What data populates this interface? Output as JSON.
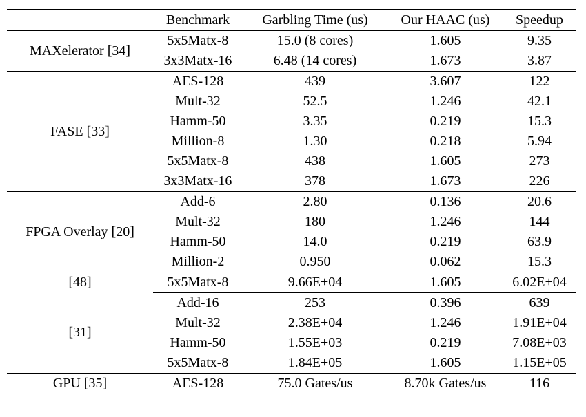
{
  "table": {
    "header": [
      "Benchmark",
      "Garbling Time (us)",
      "Our HAAC (us)",
      "Speedup"
    ],
    "sections": [
      {
        "groups": [
          {
            "label": "MAXelerator [34]",
            "rows": [
              [
                "5x5Matx-8",
                "15.0 (8 cores)",
                "1.605",
                "9.35"
              ],
              [
                "3x3Matx-16",
                "6.48 (14 cores)",
                "1.673",
                "3.87"
              ]
            ]
          }
        ]
      },
      {
        "groups": [
          {
            "label": "FASE [33]",
            "rows": [
              [
                "AES-128",
                "439",
                "3.607",
                "122"
              ],
              [
                "Mult-32",
                "52.5",
                "1.246",
                "42.1"
              ],
              [
                "Hamm-50",
                "3.35",
                "0.219",
                "15.3"
              ],
              [
                "Million-8",
                "1.30",
                "0.218",
                "5.94"
              ],
              [
                "5x5Matx-8",
                "438",
                "1.605",
                "273"
              ],
              [
                "3x3Matx-16",
                "378",
                "1.673",
                "226"
              ]
            ]
          }
        ]
      },
      {
        "groups": [
          {
            "label": "FPGA Overlay [20]",
            "rows": [
              [
                "Add-6",
                "2.80",
                "0.136",
                "20.6"
              ],
              [
                "Mult-32",
                "180",
                "1.246",
                "144"
              ],
              [
                "Hamm-50",
                "14.0",
                "0.219",
                "63.9"
              ],
              [
                "Million-2",
                "0.950",
                "0.062",
                "15.3"
              ]
            ]
          },
          {
            "label": "[48]",
            "rows": [
              [
                "5x5Matx-8",
                "9.66E+04",
                "1.605",
                "6.02E+04"
              ]
            ]
          },
          {
            "label": "[31]",
            "rows": [
              [
                "Add-16",
                "253",
                "0.396",
                "639"
              ],
              [
                "Mult-32",
                "2.38E+04",
                "1.246",
                "1.91E+04"
              ],
              [
                "Hamm-50",
                "1.55E+03",
                "0.219",
                "7.08E+03"
              ],
              [
                "5x5Matx-8",
                "1.84E+05",
                "1.605",
                "1.15E+05"
              ]
            ]
          }
        ]
      },
      {
        "groups": [
          {
            "label": "GPU [35]",
            "rows": [
              [
                "AES-128",
                "75.0 Gates/us",
                "8.70k Gates/us",
                "116"
              ]
            ]
          }
        ]
      }
    ]
  }
}
